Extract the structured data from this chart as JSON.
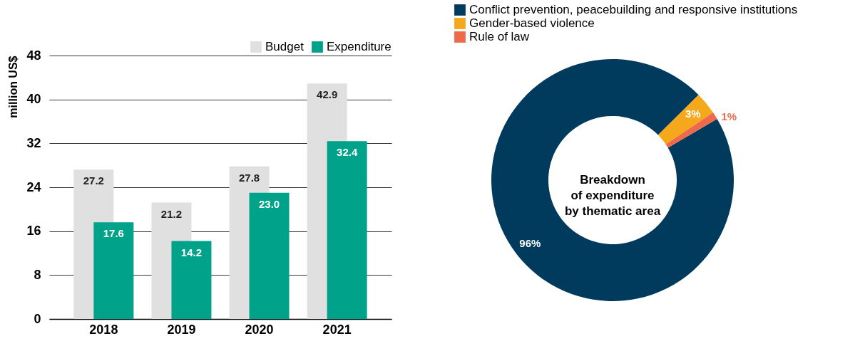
{
  "chart_data": [
    {
      "type": "bar",
      "ylabel": "million US$",
      "categories": [
        "2018",
        "2019",
        "2020",
        "2021"
      ],
      "series": [
        {
          "name": "Budget",
          "color": "#e0e0e0",
          "values": [
            27.2,
            21.2,
            27.8,
            42.9
          ],
          "value_labels": [
            "27.2",
            "21.2",
            "27.8",
            "42.9"
          ]
        },
        {
          "name": "Expenditure",
          "color": "#00a28a",
          "values": [
            17.6,
            14.2,
            23.0,
            32.4
          ],
          "value_labels": [
            "17.6",
            "14.2",
            "23.0",
            "32.4"
          ]
        }
      ],
      "ylim": [
        0,
        48
      ],
      "yticks": [
        0,
        8,
        16,
        24,
        32,
        40,
        48
      ],
      "grid": "y",
      "legend": "top right"
    },
    {
      "type": "donut",
      "title": "Breakdown\nof expenditure\nby thematic area",
      "categories": [
        "Conflict prevention, peacebuilding and responsive institutions",
        "Gender-based violence",
        "Rule of law"
      ],
      "values": [
        96,
        3,
        1
      ],
      "colors": [
        "#003a5d",
        "#f5a81c",
        "#ee6a4b"
      ],
      "value_labels": [
        "96%",
        "3%",
        "1%"
      ],
      "legend": "top right"
    }
  ]
}
